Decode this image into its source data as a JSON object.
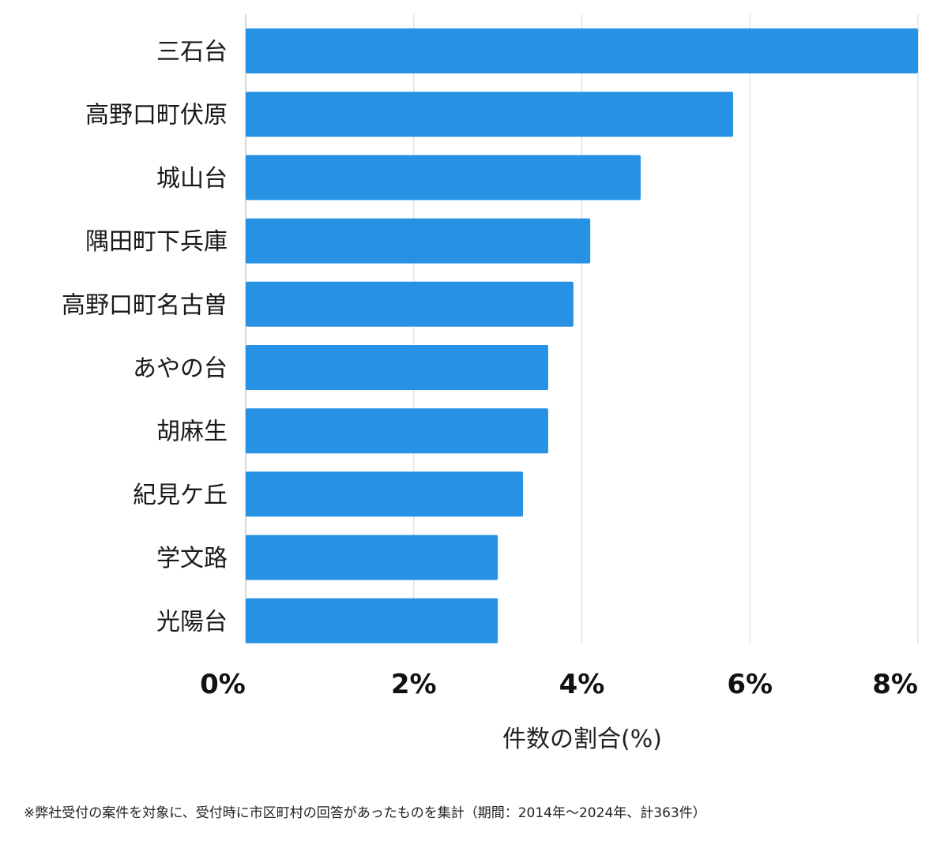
{
  "chart_data": {
    "type": "bar",
    "orientation": "horizontal",
    "categories": [
      "三石台",
      "高野口町伏原",
      "城山台",
      "隅田町下兵庫",
      "高野口町名古曽",
      "あやの台",
      "胡麻生",
      "紀見ケ丘",
      "学文路",
      "光陽台"
    ],
    "values": [
      8.0,
      5.8,
      4.7,
      4.1,
      3.9,
      3.6,
      3.6,
      3.3,
      3.0,
      3.0
    ],
    "xlabel": "件数の割合(%)",
    "xlim": [
      0,
      8
    ],
    "xticks": [
      0,
      2,
      4,
      6,
      8
    ],
    "xtick_labels": [
      "0%",
      "2%",
      "4%",
      "6%",
      "8%"
    ],
    "grid": true,
    "bar_color": "#2792e3",
    "grid_color": "#dddddd"
  },
  "footnote": "※弊社受付の案件を対象に、受付時に市区町村の回答があったものを集計（期間：2014年〜2024年、計363件）"
}
